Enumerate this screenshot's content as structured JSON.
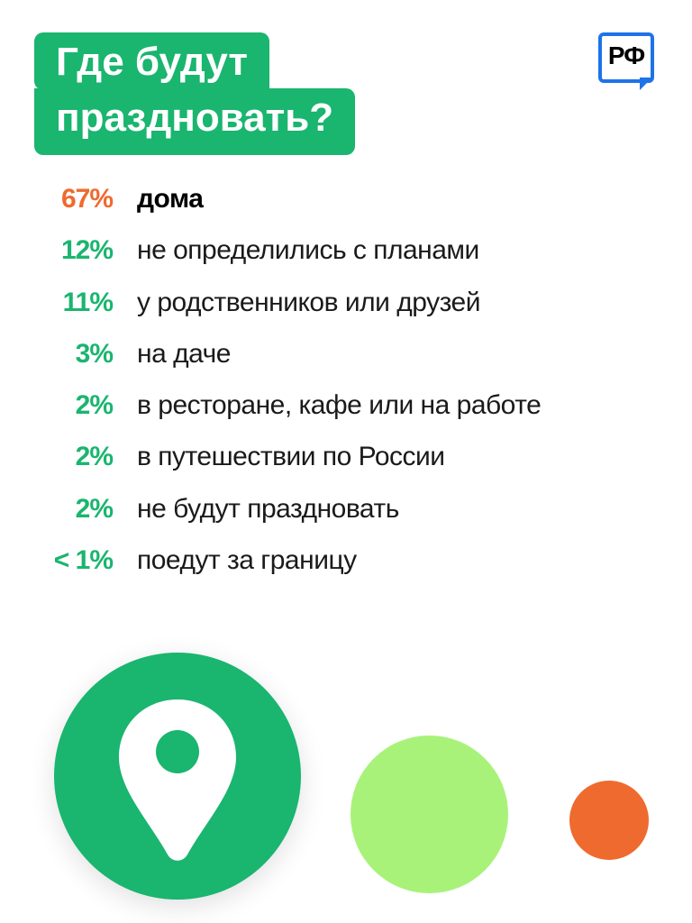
{
  "title": {
    "line1": "Где будут",
    "line2": "праздновать?"
  },
  "logo": {
    "text": "РФ"
  },
  "colors": {
    "green": "#1ab56f",
    "orange": "#ef6a2e",
    "lime": "#a8f27a",
    "blue": "#1e73e8"
  },
  "chart_data": {
    "type": "table",
    "title": "Где будут праздновать?",
    "rows": [
      {
        "percent": "67%",
        "label": "дома",
        "value": 67,
        "highlight": true
      },
      {
        "percent": "12%",
        "label": "не определились с планами",
        "value": 12
      },
      {
        "percent": "11%",
        "label": "у родственников или друзей",
        "value": 11
      },
      {
        "percent": "3%",
        "label": "на даче",
        "value": 3
      },
      {
        "percent": "2%",
        "label": "в ресторане, кафе или на работе",
        "value": 2
      },
      {
        "percent": "2%",
        "label": "в путешествии по России",
        "value": 2
      },
      {
        "percent": "2%",
        "label": "не будут праздновать",
        "value": 2
      },
      {
        "percent": "< 1%",
        "label": "поедут за границу",
        "value": 1
      }
    ]
  },
  "icons": {
    "pin": "location-pin-icon"
  }
}
